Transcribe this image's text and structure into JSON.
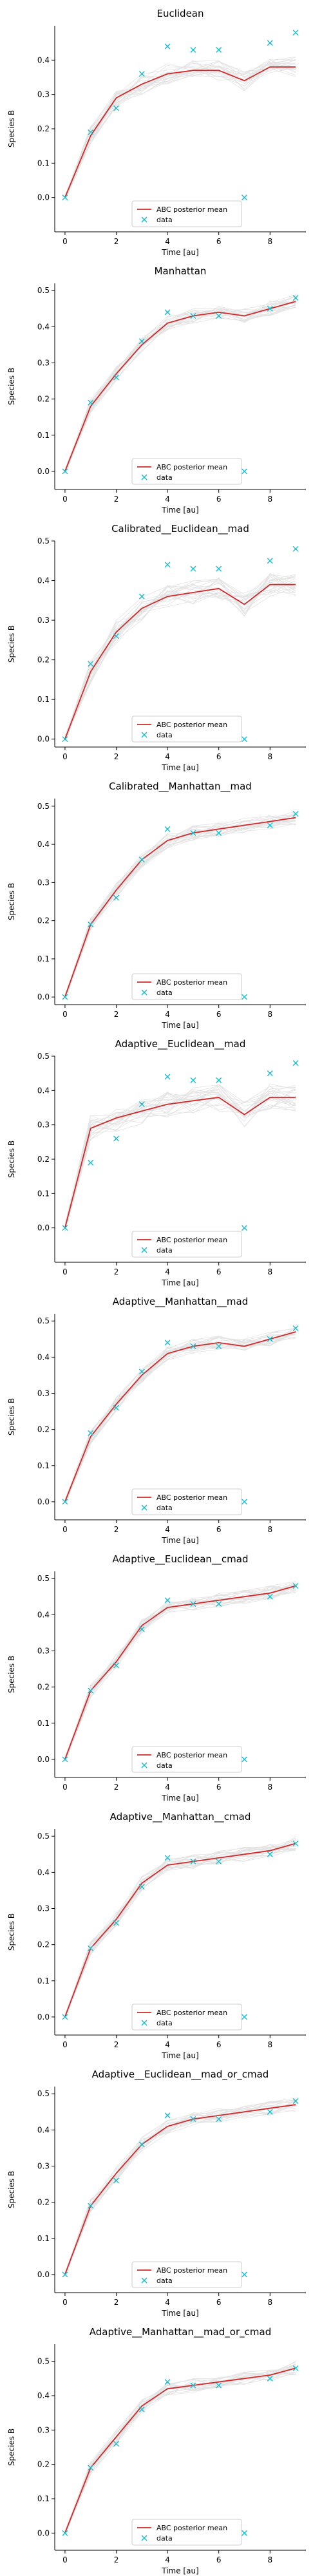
{
  "common": {
    "xlabel": "Time [au]",
    "ylabel": "Species B",
    "legend_mean": "ABC posterior mean",
    "legend_data": "data",
    "legend_placement": "bottom-center",
    "colors": {
      "mean": "#d62728",
      "data": "#17becf",
      "samples": "#808080"
    },
    "xlim": [
      -0.4,
      9.4
    ],
    "xticks": [
      0,
      2,
      4,
      6,
      8
    ],
    "data_x": [
      0,
      1,
      2,
      3,
      4,
      5,
      6,
      7,
      8,
      9
    ],
    "data_y": [
      0.0,
      0.19,
      0.26,
      0.36,
      0.44,
      0.43,
      0.43,
      0.0,
      0.45,
      0.48
    ]
  },
  "chart_data": [
    {
      "type": "line",
      "title": "Euclidean",
      "ylim": [
        -0.1,
        0.5
      ],
      "yticks": [
        0.0,
        0.1,
        0.2,
        0.3,
        0.4
      ],
      "x": [
        0,
        1,
        2,
        3,
        4,
        5,
        6,
        7,
        8,
        9
      ],
      "mean": [
        0.0,
        0.18,
        0.29,
        0.33,
        0.36,
        0.37,
        0.37,
        0.34,
        0.38,
        0.38
      ],
      "spread": 0.03
    },
    {
      "type": "line",
      "title": "Manhattan",
      "ylim": [
        -0.05,
        0.52
      ],
      "yticks": [
        0.0,
        0.1,
        0.2,
        0.3,
        0.4,
        0.5
      ],
      "x": [
        0,
        1,
        2,
        3,
        4,
        5,
        6,
        7,
        8,
        9
      ],
      "mean": [
        0.0,
        0.18,
        0.27,
        0.35,
        0.41,
        0.43,
        0.44,
        0.43,
        0.45,
        0.47
      ],
      "spread": 0.02
    },
    {
      "type": "line",
      "title": "Calibrated__Euclidean__mad",
      "ylim": [
        -0.02,
        0.5
      ],
      "yticks": [
        0.0,
        0.1,
        0.2,
        0.3,
        0.4,
        0.5
      ],
      "x": [
        0,
        1,
        2,
        3,
        4,
        5,
        6,
        7,
        8,
        9
      ],
      "mean": [
        0.0,
        0.17,
        0.27,
        0.33,
        0.36,
        0.37,
        0.38,
        0.34,
        0.39,
        0.39
      ],
      "spread": 0.03
    },
    {
      "type": "line",
      "title": "Calibrated__Manhattan__mad",
      "ylim": [
        -0.02,
        0.52
      ],
      "yticks": [
        0.0,
        0.1,
        0.2,
        0.3,
        0.4,
        0.5
      ],
      "x": [
        0,
        1,
        2,
        3,
        4,
        5,
        6,
        7,
        8,
        9
      ],
      "mean": [
        0.0,
        0.19,
        0.28,
        0.36,
        0.41,
        0.43,
        0.44,
        0.45,
        0.46,
        0.47
      ],
      "spread": 0.02
    },
    {
      "type": "line",
      "title": "Adaptive__Euclidean__mad",
      "ylim": [
        -0.1,
        0.5
      ],
      "yticks": [
        0.0,
        0.1,
        0.2,
        0.3,
        0.4,
        0.5
      ],
      "x": [
        0,
        1,
        2,
        3,
        4,
        5,
        6,
        7,
        8,
        9
      ],
      "mean": [
        0.0,
        0.29,
        0.32,
        0.34,
        0.36,
        0.37,
        0.38,
        0.33,
        0.38,
        0.38
      ],
      "spread": 0.04
    },
    {
      "type": "line",
      "title": "Adaptive__Manhattan__mad",
      "ylim": [
        -0.05,
        0.52
      ],
      "yticks": [
        0.0,
        0.1,
        0.2,
        0.3,
        0.4,
        0.5
      ],
      "x": [
        0,
        1,
        2,
        3,
        4,
        5,
        6,
        7,
        8,
        9
      ],
      "mean": [
        0.0,
        0.18,
        0.27,
        0.35,
        0.41,
        0.43,
        0.44,
        0.43,
        0.45,
        0.47
      ],
      "spread": 0.02
    },
    {
      "type": "line",
      "title": "Adaptive__Euclidean__cmad",
      "ylim": [
        -0.05,
        0.52
      ],
      "yticks": [
        0.0,
        0.1,
        0.2,
        0.3,
        0.4,
        0.5
      ],
      "x": [
        0,
        1,
        2,
        3,
        4,
        5,
        6,
        7,
        8,
        9
      ],
      "mean": [
        0.0,
        0.19,
        0.27,
        0.37,
        0.42,
        0.43,
        0.44,
        0.45,
        0.46,
        0.48
      ],
      "spread": 0.02
    },
    {
      "type": "line",
      "title": "Adaptive__Manhattan__cmad",
      "ylim": [
        -0.05,
        0.52
      ],
      "yticks": [
        0.0,
        0.1,
        0.2,
        0.3,
        0.4,
        0.5
      ],
      "x": [
        0,
        1,
        2,
        3,
        4,
        5,
        6,
        7,
        8,
        9
      ],
      "mean": [
        0.0,
        0.19,
        0.27,
        0.37,
        0.42,
        0.43,
        0.44,
        0.45,
        0.46,
        0.48
      ],
      "spread": 0.02
    },
    {
      "type": "line",
      "title": "Adaptive__Euclidean__mad_or_cmad",
      "ylim": [
        -0.05,
        0.52
      ],
      "yticks": [
        0.0,
        0.1,
        0.2,
        0.3,
        0.4,
        0.5
      ],
      "x": [
        0,
        1,
        2,
        3,
        4,
        5,
        6,
        7,
        8,
        9
      ],
      "mean": [
        0.0,
        0.19,
        0.28,
        0.36,
        0.41,
        0.43,
        0.44,
        0.45,
        0.46,
        0.47
      ],
      "spread": 0.02
    },
    {
      "type": "line",
      "title": "Adaptive__Manhattan__mad_or_cmad",
      "ylim": [
        -0.05,
        0.55
      ],
      "yticks": [
        0.0,
        0.1,
        0.2,
        0.3,
        0.4,
        0.5
      ],
      "x": [
        0,
        1,
        2,
        3,
        4,
        5,
        6,
        7,
        8,
        9
      ],
      "mean": [
        0.0,
        0.19,
        0.28,
        0.37,
        0.42,
        0.43,
        0.44,
        0.45,
        0.46,
        0.48
      ],
      "spread": 0.02
    }
  ]
}
